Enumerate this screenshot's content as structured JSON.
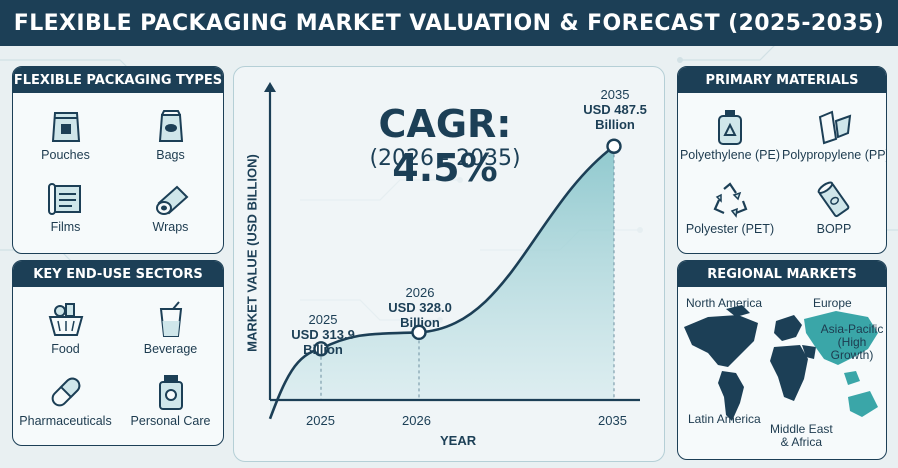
{
  "title": "FLEXIBLE PACKAGING MARKET VALUATION & FORECAST (2025-2035)",
  "colors": {
    "navy": "#1c3f56",
    "teal": "#3aa6a8",
    "light_teal": "#cfe6ea",
    "background": "#e9f0f2"
  },
  "packaging_types": {
    "heading": "FLEXIBLE PACKAGING TYPES",
    "items": [
      {
        "label": "Pouches",
        "icon": "pouch-icon"
      },
      {
        "label": "Bags",
        "icon": "bag-icon"
      },
      {
        "label": "Films",
        "icon": "film-icon"
      },
      {
        "label": "Wraps",
        "icon": "wrap-roll-icon"
      }
    ]
  },
  "end_use": {
    "heading": "KEY END-USE SECTORS",
    "items": [
      {
        "label": "Food",
        "icon": "food-basket-icon"
      },
      {
        "label": "Beverage",
        "icon": "beverage-cup-icon"
      },
      {
        "label": "Pharmaceuticals",
        "icon": "capsule-icon"
      },
      {
        "label": "Personal Care",
        "icon": "personal-care-bottle-icon"
      }
    ]
  },
  "materials": {
    "heading": "PRIMARY MATERIALS",
    "items": [
      {
        "label": "Polyethylene (PE)",
        "icon": "recycle-bottle-icon"
      },
      {
        "label": "Polypropylene (PP)",
        "icon": "film-strip-icon"
      },
      {
        "label": "Polyester (PET)",
        "icon": "recycle-arrows-icon"
      },
      {
        "label": "BOPP",
        "icon": "film-roll-icon"
      }
    ]
  },
  "regions": {
    "heading": "REGIONAL MARKETS",
    "labels": {
      "north_america": "North America",
      "europe": "Europe",
      "asia_pacific": "Asia-Pacific",
      "asia_pacific_note": "(High Growth)",
      "latin_america": "Latin America",
      "mea_line1": "Middle East",
      "mea_line2": "& Africa"
    }
  },
  "cagr": {
    "value": "CAGR: 4.5%",
    "range": "(2026 - 2035)"
  },
  "chart_data": {
    "type": "area",
    "xlabel": "YEAR",
    "ylabel": "MARKET VALUE (USD BILLION)",
    "x": [
      "2025",
      "2026",
      "2035"
    ],
    "values": [
      313.9,
      328.0,
      487.5
    ],
    "point_labels": [
      {
        "year": "2025",
        "value": "USD 313.9",
        "unit": "Billion"
      },
      {
        "year": "2026",
        "value": "USD 328.0",
        "unit": "Billion"
      },
      {
        "year": "2035",
        "value": "USD 487.5",
        "unit": "Billion"
      }
    ],
    "grid": false
  }
}
